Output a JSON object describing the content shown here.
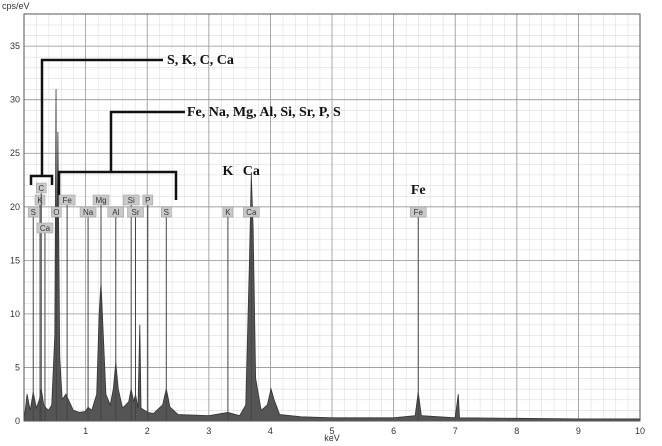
{
  "chart_data": {
    "type": "spectrum",
    "y_label": "cps/eV",
    "x_label": "keV",
    "xlim": [
      0,
      10
    ],
    "xticks": [
      1,
      2,
      3,
      4,
      5,
      6,
      7,
      8,
      9,
      10
    ],
    "ylim": [
      0,
      38
    ],
    "yticks": [
      0,
      5,
      10,
      15,
      20,
      25,
      30,
      35
    ],
    "grid": true,
    "color": "#555555",
    "x": [
      0.0,
      0.05,
      0.1,
      0.15,
      0.2,
      0.25,
      0.28,
      0.32,
      0.36,
      0.4,
      0.45,
      0.5,
      0.52,
      0.53,
      0.55,
      0.58,
      0.62,
      0.68,
      0.72,
      0.8,
      0.9,
      1.0,
      1.04,
      1.1,
      1.18,
      1.22,
      1.25,
      1.28,
      1.33,
      1.4,
      1.45,
      1.49,
      1.53,
      1.6,
      1.7,
      1.74,
      1.78,
      1.81,
      1.85,
      1.88,
      1.9,
      2.01,
      2.1,
      2.25,
      2.31,
      2.37,
      2.5,
      3.0,
      3.31,
      3.5,
      3.6,
      3.66,
      3.69,
      3.72,
      3.76,
      3.85,
      3.95,
      4.01,
      4.06,
      4.15,
      4.5,
      5.0,
      5.5,
      6.0,
      6.35,
      6.4,
      6.45,
      7.0,
      7.05,
      7.07,
      8.0,
      9.0,
      10.0
    ],
    "values": [
      0,
      2.5,
      1.0,
      2.7,
      1.2,
      2.0,
      3.0,
      1.5,
      1.2,
      1.0,
      1.5,
      8,
      31,
      12,
      27,
      6,
      2,
      2.5,
      2,
      1.0,
      0.8,
      0.9,
      1.3,
      1.0,
      2.5,
      10,
      13,
      9,
      2.5,
      1.5,
      3,
      5.5,
      3,
      1.2,
      1.8,
      3,
      1.8,
      2.5,
      1.2,
      9,
      1.2,
      0.8,
      0.7,
      1.5,
      3,
      1.3,
      0.6,
      0.5,
      0.8,
      0.5,
      1.5,
      15,
      23,
      18,
      4,
      1,
      1.5,
      3,
      2,
      0.6,
      0.4,
      0.3,
      0.3,
      0.3,
      0.5,
      2.7,
      0.5,
      0.3,
      2.5,
      0.3,
      0.25,
      0.2,
      0.2
    ],
    "markers": [
      {
        "label": "S",
        "energy": 0.15
      },
      {
        "label": "K",
        "energy": 0.26
      },
      {
        "label": "C",
        "energy": 0.28
      },
      {
        "label": "Ca",
        "energy": 0.34
      },
      {
        "label": "O",
        "energy": 0.525
      },
      {
        "label": "Fe",
        "energy": 0.7
      },
      {
        "label": "Na",
        "energy": 1.04
      },
      {
        "label": "Mg",
        "energy": 1.25
      },
      {
        "label": "Al",
        "energy": 1.49
      },
      {
        "label": "Si",
        "energy": 1.74
      },
      {
        "label": "Sr",
        "energy": 1.81
      },
      {
        "label": "P",
        "energy": 2.01
      },
      {
        "label": "S",
        "energy": 2.31
      },
      {
        "label": "K",
        "energy": 3.31
      },
      {
        "label": "Ca",
        "energy": 3.69
      },
      {
        "label": "Fe",
        "energy": 6.4
      }
    ],
    "annotations": [
      "S, K, C, Ca",
      "Fe, Na, Mg, Al, Si, Sr, P, S"
    ],
    "peak_labels": [
      {
        "text": "K",
        "energy": 3.31
      },
      {
        "text": "Ca",
        "energy": 3.69
      },
      {
        "text": "Fe",
        "energy": 6.4
      }
    ]
  }
}
